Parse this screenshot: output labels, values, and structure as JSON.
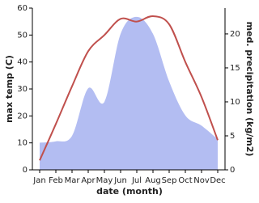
{
  "chart_data": {
    "type": "line-area",
    "x_label": "date (month)",
    "y_label": "max temp (C)",
    "y2_label": "med. precipitation (kg/m2)",
    "categories": [
      "Jan",
      "Feb",
      "Mar",
      "Apr",
      "May",
      "Jun",
      "Jul",
      "Aug",
      "Sep",
      "Oct",
      "Nov",
      "Dec"
    ],
    "series": [
      {
        "name": "max temp",
        "color": "#c0504d",
        "values": [
          3.5,
          17,
          31,
          44,
          50,
          56,
          55,
          57,
          54,
          40,
          27,
          11
        ]
      },
      {
        "name": "precipitation",
        "color": "#b3bdf2",
        "axis": "y2",
        "values": [
          4,
          4.2,
          5,
          12,
          10,
          20,
          22.5,
          20,
          13,
          8,
          6.5,
          4.5
        ]
      }
    ],
    "ylim": [
      0,
      60
    ],
    "yticks": [
      0,
      10,
      20,
      30,
      40,
      50,
      60
    ],
    "y2lim": [
      0,
      23.8
    ],
    "y2ticks": [
      0,
      5,
      10,
      15,
      20
    ]
  }
}
